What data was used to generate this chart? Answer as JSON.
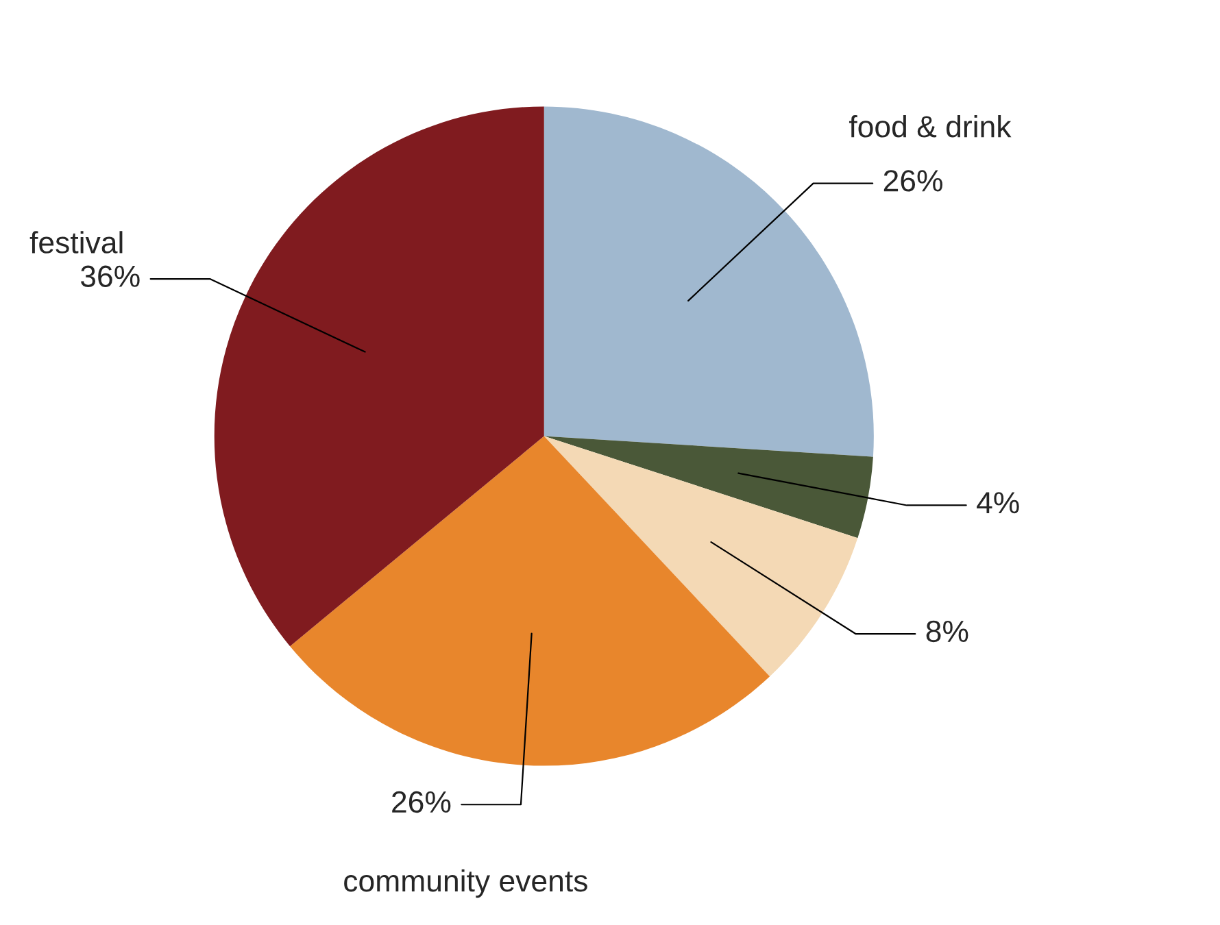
{
  "chart_data": {
    "type": "pie",
    "categories": [
      "food & drink",
      null,
      null,
      "community events",
      "festival"
    ],
    "values": [
      26,
      4,
      8,
      26,
      36
    ],
    "colors": [
      "#a0b8cf",
      "#4a5838",
      "#f4d9b5",
      "#e8862c",
      "#801b1f"
    ],
    "value_labels": [
      "26%",
      "4%",
      "8%",
      "26%",
      "36%"
    ]
  }
}
